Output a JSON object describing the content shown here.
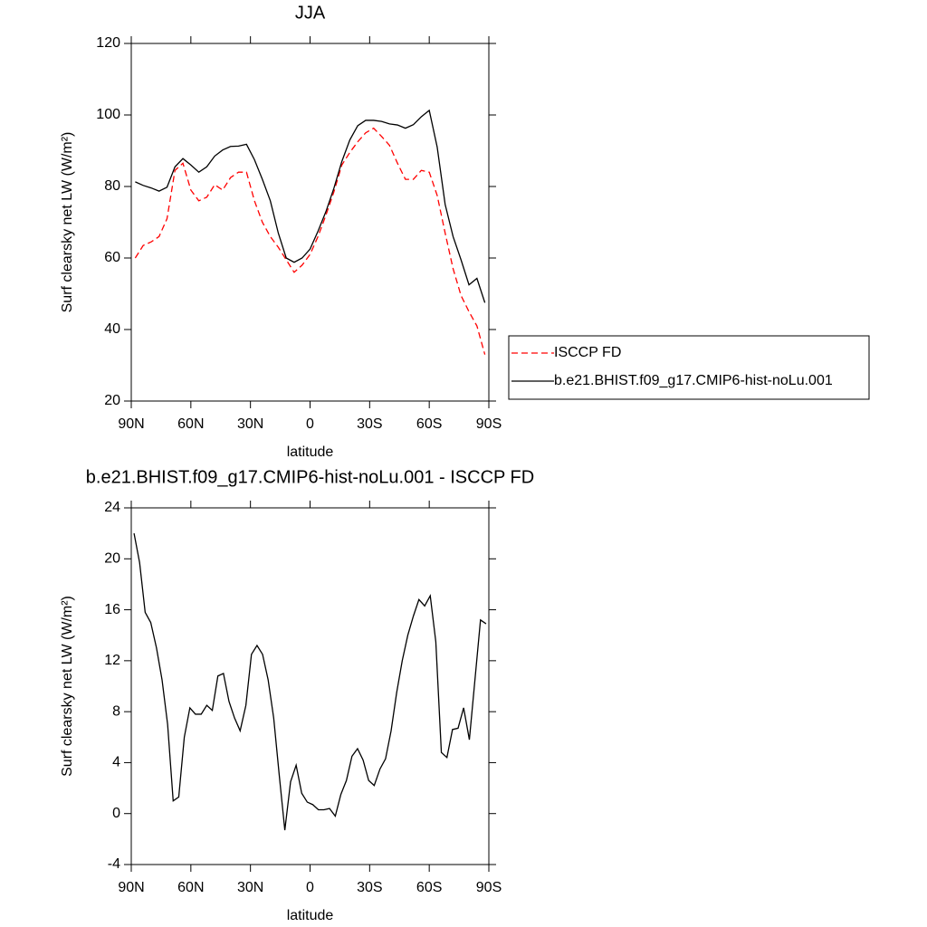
{
  "chart_data": [
    {
      "type": "line",
      "title": "JJA",
      "xlabel": "latitude",
      "ylabel": "Surf clearsky net LW (W/m²)",
      "x": [
        88,
        84,
        80,
        76,
        72,
        68,
        64,
        60,
        56,
        52,
        48,
        44,
        40,
        36,
        32,
        28,
        24,
        20,
        16,
        12,
        8,
        4,
        0,
        -4,
        -8,
        -12,
        -16,
        -20,
        -24,
        -28,
        -32,
        -36,
        -40,
        -44,
        -48,
        -52,
        -56,
        -60,
        -64,
        -68,
        -72,
        -76,
        -80,
        -84,
        -88
      ],
      "series": [
        {
          "name": "ISCCP FD",
          "color": "#ff0000",
          "style": "dashed",
          "values": [
            60,
            63.5,
            64.5,
            66,
            71,
            84.5,
            86.5,
            79,
            76,
            77,
            80.5,
            79,
            82.5,
            84,
            84,
            76,
            70,
            66,
            63,
            59.5,
            56,
            58,
            61,
            66,
            72,
            78.5,
            86,
            89.5,
            92.5,
            95,
            96.3,
            94,
            91.5,
            86.5,
            82,
            82,
            84.5,
            84,
            77.5,
            67,
            57,
            49.5,
            45,
            41,
            33
          ]
        },
        {
          "name": "b.e21.BHIST.f09_g17.CMIP6-hist-noLu.001",
          "color": "#000000",
          "style": "solid",
          "values": [
            81.3,
            80.3,
            79.6,
            78.7,
            79.8,
            85.5,
            87.8,
            86,
            84,
            85.5,
            88.5,
            90.2,
            91.2,
            91.3,
            91.8,
            87.5,
            82,
            76,
            67,
            60,
            58.8,
            60,
            62.5,
            67.5,
            73,
            79.5,
            87,
            93,
            97,
            98.5,
            98.5,
            98.2,
            97.5,
            97.2,
            96.3,
            97.3,
            99.5,
            101.3,
            91,
            75,
            66,
            59.5,
            52.5,
            54.3,
            47.5
          ]
        }
      ],
      "xlim": [
        90,
        -90
      ],
      "xticks": [
        {
          "value": 90,
          "label": "90N"
        },
        {
          "value": 60,
          "label": "60N"
        },
        {
          "value": 30,
          "label": "30N"
        },
        0,
        {
          "value": -30,
          "label": "30S"
        },
        {
          "value": -60,
          "label": "60S"
        },
        {
          "value": -90,
          "label": "90S"
        }
      ],
      "ylim": [
        20,
        120
      ],
      "yticks": [
        20,
        40,
        60,
        80,
        100,
        120
      ],
      "legend": "right"
    },
    {
      "type": "line",
      "title": "b.e21.BHIST.f09_g17.CMIP6-hist-noLu.001 - ISCCP FD",
      "xlabel": "latitude",
      "ylabel": "Surf clearsky net LW (W/m²)",
      "x": [
        88.6,
        85.8,
        83.0,
        80.2,
        77.3,
        74.5,
        71.7,
        68.9,
        66.1,
        63.3,
        60.5,
        57.7,
        54.8,
        52.0,
        49.2,
        46.4,
        43.6,
        40.8,
        38.0,
        35.2,
        32.3,
        29.5,
        26.7,
        23.9,
        21.1,
        18.3,
        15.5,
        12.7,
        9.8,
        7.0,
        4.2,
        1.4,
        -1.4,
        -4.2,
        -7.0,
        -9.8,
        -12.7,
        -15.5,
        -18.3,
        -21.1,
        -23.9,
        -26.7,
        -29.5,
        -32.3,
        -35.2,
        -38.0,
        -40.8,
        -43.6,
        -46.4,
        -49.2,
        -52.0,
        -54.8,
        -57.7,
        -60.5,
        -63.3,
        -66.1,
        -68.9,
        -71.7,
        -74.5,
        -77.3,
        -80.2,
        -83.0,
        -85.8,
        -88.6
      ],
      "values": [
        22,
        19.7,
        15.8,
        15,
        13,
        10.5,
        7,
        1,
        1.3,
        6,
        8.3,
        7.8,
        7.8,
        8.5,
        8.1,
        10.8,
        11,
        8.8,
        7.5,
        6.5,
        8.5,
        12.5,
        13.2,
        12.5,
        10.5,
        7.5,
        3,
        -1.3,
        2.5,
        3.8,
        1.6,
        0.9,
        0.7,
        0.3,
        0.3,
        0.4,
        -0.2,
        1.5,
        2.6,
        4.5,
        5.1,
        4.2,
        2.6,
        2.2,
        3.5,
        4.3,
        6.5,
        9.5,
        12,
        14,
        15.5,
        16.8,
        16.3,
        17.1,
        13.5,
        4.8,
        4.4,
        6.6,
        6.7,
        8.3,
        5.8,
        10.5,
        15.2,
        14.9
      ],
      "color": "#000000",
      "xlim": [
        90,
        -90
      ],
      "xticks": [
        {
          "value": 90,
          "label": "90N"
        },
        {
          "value": 60,
          "label": "60N"
        },
        {
          "value": 30,
          "label": "30N"
        },
        0,
        {
          "value": -30,
          "label": "30S"
        },
        {
          "value": -60,
          "label": "60S"
        },
        {
          "value": -90,
          "label": "90S"
        }
      ],
      "ylim": [
        -4,
        24
      ],
      "yticks": [
        -4,
        0,
        4,
        8,
        12,
        16,
        20,
        24
      ]
    }
  ]
}
